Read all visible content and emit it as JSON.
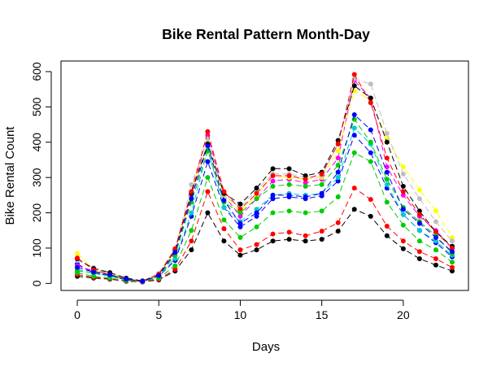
{
  "chart_data": {
    "type": "line",
    "title": "Bike Rental Pattern Month-Day",
    "xlabel": "Days",
    "ylabel": "Bike Rental Count",
    "xlim": [
      -1,
      24
    ],
    "ylim": [
      -20,
      630
    ],
    "xticks": [
      0,
      5,
      10,
      15,
      20
    ],
    "yticks": [
      0,
      100,
      200,
      300,
      400,
      500,
      600
    ],
    "grid": false,
    "legend": "none",
    "x": [
      0,
      1,
      2,
      3,
      4,
      5,
      6,
      7,
      8,
      9,
      10,
      11,
      12,
      13,
      14,
      15,
      16,
      17,
      18,
      19,
      20,
      21,
      22,
      23
    ],
    "series": [
      {
        "color": "#000000",
        "values": [
          20,
          15,
          12,
          6,
          4,
          10,
          35,
          95,
          200,
          120,
          80,
          95,
          120,
          125,
          120,
          125,
          148,
          210,
          190,
          135,
          98,
          70,
          52,
          35
        ]
      },
      {
        "color": "#ff0000",
        "values": [
          25,
          17,
          13,
          7,
          4,
          12,
          40,
          120,
          260,
          155,
          95,
          110,
          140,
          145,
          135,
          148,
          172,
          270,
          238,
          162,
          120,
          90,
          70,
          45
        ]
      },
      {
        "color": "#00cc00",
        "values": [
          30,
          20,
          15,
          8,
          5,
          15,
          50,
          150,
          300,
          180,
          130,
          160,
          200,
          205,
          200,
          205,
          245,
          370,
          345,
          230,
          165,
          120,
          95,
          60
        ]
      },
      {
        "color": "#0000ff",
        "values": [
          55,
          30,
          22,
          10,
          5,
          20,
          65,
          190,
          345,
          215,
          160,
          190,
          240,
          245,
          240,
          248,
          290,
          420,
          370,
          270,
          195,
          150,
          115,
          75
        ]
      },
      {
        "color": "#00cccc",
        "values": [
          40,
          28,
          20,
          10,
          5,
          20,
          70,
          200,
          380,
          215,
          175,
          210,
          250,
          255,
          250,
          255,
          300,
          440,
          395,
          280,
          195,
          150,
          120,
          80
        ]
      },
      {
        "color": "#ff00ff",
        "values": [
          50,
          35,
          25,
          12,
          6,
          24,
          85,
          250,
          420,
          250,
          190,
          240,
          290,
          295,
          285,
          295,
          355,
          575,
          525,
          330,
          250,
          190,
          150,
          100
        ]
      },
      {
        "color": "#ffff00",
        "values": [
          85,
          40,
          30,
          14,
          7,
          25,
          90,
          260,
          400,
          245,
          205,
          250,
          305,
          300,
          295,
          300,
          375,
          545,
          520,
          410,
          330,
          265,
          205,
          130
        ]
      },
      {
        "color": "#bebebe",
        "values": [
          65,
          45,
          32,
          15,
          7,
          28,
          95,
          280,
          410,
          250,
          215,
          265,
          310,
          310,
          300,
          305,
          395,
          580,
          565,
          425,
          310,
          240,
          175,
          120
        ]
      },
      {
        "color": "#000000",
        "values": [
          70,
          42,
          30,
          15,
          7,
          25,
          95,
          255,
          395,
          255,
          225,
          270,
          325,
          325,
          305,
          315,
          405,
          560,
          525,
          400,
          275,
          205,
          145,
          105
        ]
      },
      {
        "color": "#ff0000",
        "values": [
          72,
          38,
          25,
          12,
          6,
          26,
          98,
          260,
          430,
          260,
          210,
          255,
          305,
          305,
          295,
          310,
          395,
          592,
          512,
          355,
          260,
          195,
          145,
          100
        ]
      },
      {
        "color": "#00cc00",
        "values": [
          35,
          30,
          22,
          10,
          5,
          20,
          80,
          230,
          375,
          230,
          200,
          240,
          275,
          280,
          275,
          280,
          335,
          465,
          400,
          295,
          215,
          175,
          135,
          85
        ]
      },
      {
        "color": "#0000ff",
        "values": [
          45,
          32,
          24,
          12,
          6,
          22,
          88,
          240,
          390,
          235,
          170,
          200,
          250,
          250,
          245,
          255,
          315,
          478,
          435,
          315,
          210,
          170,
          130,
          90
        ]
      }
    ]
  }
}
